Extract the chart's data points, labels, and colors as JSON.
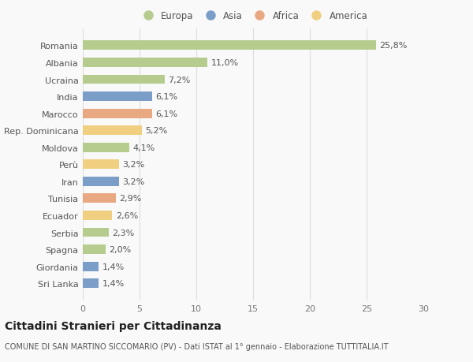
{
  "categories": [
    "Romania",
    "Albania",
    "Ucraina",
    "India",
    "Marocco",
    "Rep. Dominicana",
    "Moldova",
    "Perù",
    "Iran",
    "Tunisia",
    "Ecuador",
    "Serbia",
    "Spagna",
    "Giordania",
    "Sri Lanka"
  ],
  "values": [
    25.8,
    11.0,
    7.2,
    6.1,
    6.1,
    5.2,
    4.1,
    3.2,
    3.2,
    2.9,
    2.6,
    2.3,
    2.0,
    1.4,
    1.4
  ],
  "labels": [
    "25,8%",
    "11,0%",
    "7,2%",
    "6,1%",
    "6,1%",
    "5,2%",
    "4,1%",
    "3,2%",
    "3,2%",
    "2,9%",
    "2,6%",
    "2,3%",
    "2,0%",
    "1,4%",
    "1,4%"
  ],
  "continents": [
    "Europa",
    "Europa",
    "Europa",
    "Asia",
    "Africa",
    "America",
    "Europa",
    "America",
    "Asia",
    "Africa",
    "America",
    "Europa",
    "Europa",
    "Asia",
    "Asia"
  ],
  "colors": {
    "Europa": "#b5cc8e",
    "Asia": "#7b9ec9",
    "Africa": "#e8a882",
    "America": "#f0d080"
  },
  "legend_labels": [
    "Europa",
    "Asia",
    "Africa",
    "America"
  ],
  "title": "Cittadini Stranieri per Cittadinanza",
  "subtitle": "COMUNE DI SAN MARTINO SICCOMARIO (PV) - Dati ISTAT al 1° gennaio - Elaborazione TUTTITALIA.IT",
  "xlim": [
    0,
    30
  ],
  "xticks": [
    0,
    5,
    10,
    15,
    20,
    25,
    30
  ],
  "bg_color": "#f9f9f9",
  "grid_color": "#dddddd",
  "bar_height": 0.55,
  "label_fontsize": 8,
  "tick_fontsize": 8,
  "title_fontsize": 10,
  "subtitle_fontsize": 7
}
